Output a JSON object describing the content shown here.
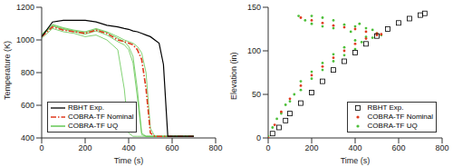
{
  "chart_data": [
    {
      "type": "line",
      "x_label": "Time (s)",
      "y_label": "Temperature (K)",
      "xlim": [
        0,
        800
      ],
      "xticks": [
        0,
        200,
        400,
        600,
        800
      ],
      "ylim": [
        400,
        1200
      ],
      "yticks": [
        400,
        600,
        800,
        1000,
        1200
      ],
      "legend": "lower left",
      "x": [
        0,
        50,
        100,
        150,
        200,
        250,
        300,
        350,
        380,
        400,
        420,
        440,
        460,
        480,
        500,
        520,
        540,
        560,
        580,
        600,
        650,
        700,
        750
      ],
      "series": [
        {
          "name": "RBHT Exp.",
          "color": "#000000",
          "line_style": "solid",
          "values": [
            1020,
            1110,
            1120,
            1120,
            1120,
            1110,
            1090,
            1080,
            1070,
            1065,
            1055,
            1050,
            1040,
            1030,
            1020,
            1000,
            980,
            850,
            410,
            410,
            410,
            410,
            null
          ]
        },
        {
          "name": "COBRA-TF Nominal",
          "color": "#e03a1e",
          "line_style": "dashdot",
          "values": [
            1020,
            1080,
            1060,
            1050,
            1040,
            1060,
            1040,
            1000,
            990,
            980,
            970,
            940,
            880,
            700,
            430,
            410,
            410,
            410,
            410,
            410,
            410,
            410,
            null
          ]
        },
        {
          "name": "COBRA-TF UQ",
          "color": "#4dbf3a",
          "line_style": "solid",
          "values": [
            1010,
            1070,
            1050,
            1040,
            1020,
            1030,
            1000,
            940,
            700,
            430,
            410,
            410,
            410,
            410,
            410,
            410,
            410,
            410,
            410,
            410,
            410,
            410,
            null
          ]
        },
        {
          "name": "COBRA-TF UQ",
          "color": "#4dbf3a",
          "line_style": "solid",
          "values": [
            1030,
            1090,
            1070,
            1055,
            1045,
            1065,
            1045,
            1010,
            990,
            960,
            900,
            700,
            430,
            410,
            410,
            410,
            410,
            410,
            410,
            410,
            410,
            410,
            null
          ]
        },
        {
          "name": "COBRA-TF UQ",
          "color": "#4dbf3a",
          "line_style": "solid",
          "values": [
            1025,
            1085,
            1065,
            1050,
            1035,
            1055,
            1030,
            990,
            970,
            940,
            860,
            650,
            420,
            410,
            410,
            410,
            410,
            410,
            410,
            410,
            410,
            410,
            null
          ]
        },
        {
          "name": "COBRA-TF UQ",
          "color": "#4dbf3a",
          "line_style": "solid",
          "values": [
            1035,
            1095,
            1075,
            1060,
            1050,
            1070,
            1050,
            1020,
            1000,
            990,
            980,
            960,
            920,
            800,
            460,
            410,
            410,
            410,
            410,
            410,
            410,
            410,
            null
          ]
        }
      ]
    },
    {
      "type": "scatter",
      "x_label": "Time (s)",
      "y_label": "Elevation (in)",
      "xlim": [
        0,
        800
      ],
      "xticks": [
        0,
        200,
        400,
        600,
        800
      ],
      "ylim": [
        0,
        150
      ],
      "yticks": [
        0,
        50,
        100,
        150
      ],
      "legend": "lower right",
      "series": [
        {
          "name": "RBHT Exp.",
          "color": "#000000",
          "marker": "square",
          "x": [
            20,
            50,
            80,
            100,
            150,
            200,
            250,
            300,
            350,
            400,
            450,
            500,
            550,
            600,
            650,
            700,
            720
          ],
          "values": [
            5,
            12,
            20,
            28,
            40,
            52,
            65,
            78,
            88,
            98,
            108,
            117,
            125,
            132,
            137,
            141,
            143
          ]
        },
        {
          "name": "COBRA-TF Nominal",
          "color": "#e03a1e",
          "marker": "dot",
          "x": [
            0,
            30,
            60,
            100,
            150,
            200,
            250,
            300,
            350,
            400,
            450,
            500,
            520,
            150,
            200,
            250,
            300,
            350,
            400,
            450,
            500
          ],
          "values": [
            0,
            15,
            30,
            45,
            60,
            72,
            82,
            92,
            100,
            108,
            114,
            118,
            119,
            138,
            135,
            132,
            129,
            127,
            125,
            122,
            120
          ]
        },
        {
          "name": "COBRA-TF UQ",
          "color": "#4dbf3a",
          "marker": "dot",
          "x": [
            0,
            20,
            40,
            60,
            80,
            100,
            120,
            150,
            150,
            200,
            200,
            250,
            250,
            300,
            300,
            350,
            350,
            400,
            400,
            430,
            450,
            480,
            500,
            520,
            140,
            200,
            250,
            300,
            350,
            400,
            450,
            380,
            300,
            250,
            200,
            170,
            420,
            480
          ],
          "values": [
            2,
            12,
            22,
            28,
            38,
            42,
            50,
            55,
            65,
            68,
            76,
            78,
            86,
            88,
            96,
            95,
            104,
            102,
            112,
            110,
            116,
            115,
            120,
            118,
            140,
            140,
            138,
            135,
            130,
            128,
            126,
            122,
            126,
            128,
            131,
            135,
            131,
            124
          ]
        }
      ]
    }
  ]
}
